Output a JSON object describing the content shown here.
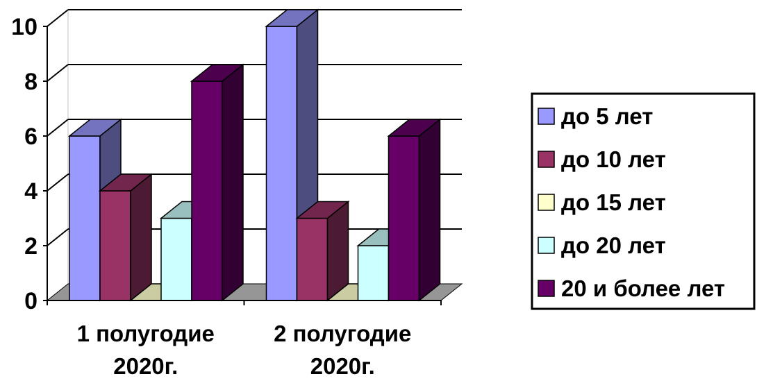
{
  "chart_data": {
    "type": "bar",
    "style": "3d-clustered-column",
    "categories": [
      "1 полугодие 2020г.",
      "2 полугодие 2020г."
    ],
    "category_lines": [
      [
        "1 полугодие",
        "2020г."
      ],
      [
        "2 полугодие",
        "2020г."
      ]
    ],
    "series": [
      {
        "name": "до 5 лет",
        "values": [
          6,
          10
        ],
        "color": "#9999FF"
      },
      {
        "name": "до 10 лет",
        "values": [
          4,
          3
        ],
        "color": "#993366"
      },
      {
        "name": "до 15 лет",
        "values": [
          0,
          0
        ],
        "color": "#FFFFCC"
      },
      {
        "name": "до 20 лет",
        "values": [
          3,
          2
        ],
        "color": "#CCFFFF"
      },
      {
        "name": "20 и более лет",
        "values": [
          8,
          6
        ],
        "color": "#660066"
      }
    ],
    "yticks": [
      0,
      2,
      4,
      6,
      8,
      10
    ],
    "ylim": [
      0,
      10
    ],
    "grid": true,
    "legend_position": "right",
    "floor_color": "#969696"
  }
}
